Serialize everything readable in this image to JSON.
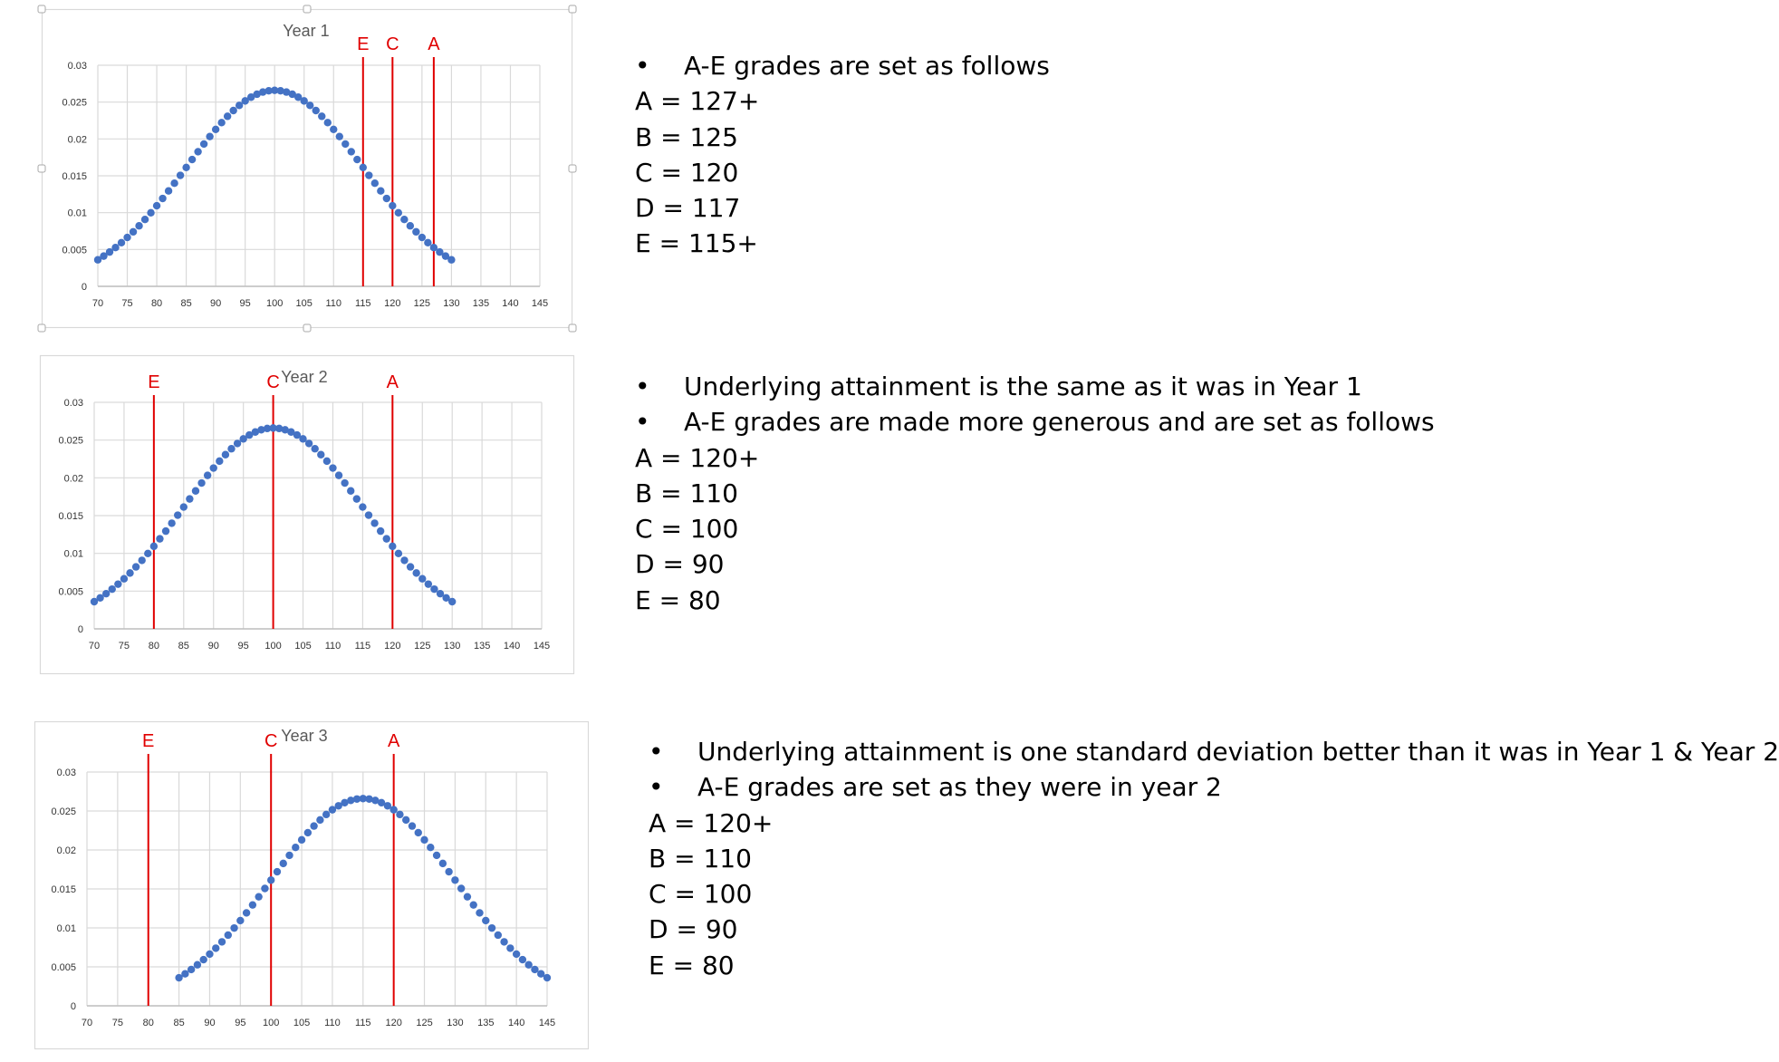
{
  "colors": {
    "points": "#4472c4",
    "cutoff": "#e00000",
    "grid": "#d9d9d9",
    "tick_text": "#333333",
    "title_text": "#595959"
  },
  "chart_data": [
    {
      "type": "scatter",
      "title": "Year 1",
      "xlim": [
        70,
        145
      ],
      "ylim": [
        0,
        0.03
      ],
      "x_ticks": [
        "70",
        "75",
        "80",
        "85",
        "90",
        "95",
        "100",
        "105",
        "110",
        "115",
        "120",
        "125",
        "130",
        "135",
        "140",
        "145"
      ],
      "y_ticks": [
        "0",
        "0.005",
        "0.01",
        "0.015",
        "0.02",
        "0.025",
        "0.03"
      ],
      "series": [
        {
          "mean": 100,
          "sd": 15,
          "x_start": 70,
          "x_end": 130,
          "x_step": 1
        }
      ],
      "cutoffs": [
        {
          "label": "E",
          "x": 115
        },
        {
          "label": "C",
          "x": 120
        },
        {
          "label": "A",
          "x": 127
        }
      ],
      "grid": true,
      "legend": "none"
    },
    {
      "type": "scatter",
      "title": "Year 2",
      "xlim": [
        70,
        145
      ],
      "ylim": [
        0,
        0.03
      ],
      "x_ticks": [
        "70",
        "75",
        "80",
        "85",
        "90",
        "95",
        "100",
        "105",
        "110",
        "115",
        "120",
        "125",
        "130",
        "135",
        "140",
        "145"
      ],
      "y_ticks": [
        "0",
        "0.005",
        "0.01",
        "0.015",
        "0.02",
        "0.025",
        "0.03"
      ],
      "series": [
        {
          "mean": 100,
          "sd": 15,
          "x_start": 70,
          "x_end": 130,
          "x_step": 1
        }
      ],
      "cutoffs": [
        {
          "label": "E",
          "x": 80
        },
        {
          "label": "C",
          "x": 100
        },
        {
          "label": "A",
          "x": 120
        }
      ],
      "grid": true,
      "legend": "none"
    },
    {
      "type": "scatter",
      "title": "Year 3",
      "xlim": [
        70,
        145
      ],
      "ylim": [
        0,
        0.03
      ],
      "x_ticks": [
        "70",
        "75",
        "80",
        "85",
        "90",
        "95",
        "100",
        "105",
        "110",
        "115",
        "120",
        "125",
        "130",
        "135",
        "140",
        "145"
      ],
      "y_ticks": [
        "0",
        "0.005",
        "0.01",
        "0.015",
        "0.02",
        "0.025",
        "0.03"
      ],
      "series": [
        {
          "mean": 115,
          "sd": 15,
          "x_start": 85,
          "x_end": 145,
          "x_step": 1
        }
      ],
      "cutoffs": [
        {
          "label": "E",
          "x": 80
        },
        {
          "label": "C",
          "x": 100
        },
        {
          "label": "A",
          "x": 120
        }
      ],
      "grid": true,
      "legend": "none"
    }
  ],
  "panels": [
    {
      "bullets": [
        "A-E grades are set as follows"
      ],
      "grades": [
        "A = 127+",
        "B = 125",
        "C = 120",
        "D = 117",
        "E = 115+"
      ]
    },
    {
      "bullets": [
        "Underlying attainment is the same as it was in Year 1",
        "A-E grades are made more generous and are set as follows"
      ],
      "grades": [
        "A = 120+",
        "B = 110",
        "C = 100",
        "D = 90",
        "E = 80"
      ]
    },
    {
      "bullets": [
        "Underlying attainment is one standard deviation better than it was in Year 1 & Year 2",
        "A-E grades are set as they were in year 2"
      ],
      "grades": [
        "A = 120+",
        "B = 110",
        "C = 100",
        "D = 90",
        "E = 80"
      ]
    }
  ],
  "bullet_symbol": "•"
}
